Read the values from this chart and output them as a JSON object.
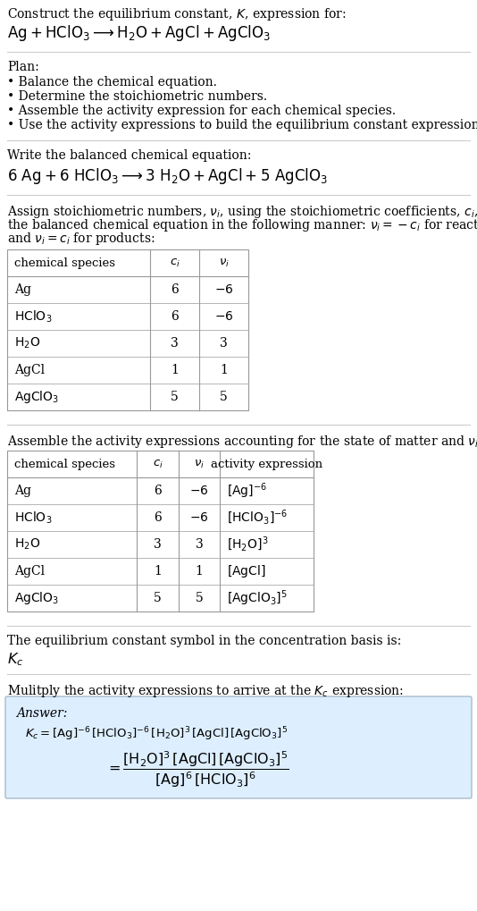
{
  "title_line1": "Construct the equilibrium constant, $K$, expression for:",
  "title_line2": "$\\mathrm{Ag + HClO_3 \\longrightarrow H_2O + AgCl + AgClO_3}$",
  "plan_header": "Plan:",
  "plan_items": [
    "• Balance the chemical equation.",
    "• Determine the stoichiometric numbers.",
    "• Assemble the activity expression for each chemical species.",
    "• Use the activity expressions to build the equilibrium constant expression."
  ],
  "balanced_header": "Write the balanced chemical equation:",
  "balanced_eq": "$\\mathrm{6\\ Ag + 6\\ HClO_3 \\longrightarrow 3\\ H_2O + AgCl + 5\\ AgClO_3}$",
  "stoich_lines": [
    "Assign stoichiometric numbers, $\\nu_i$, using the stoichiometric coefficients, $c_i$, from",
    "the balanced chemical equation in the following manner: $\\nu_i = -c_i$ for reactants",
    "and $\\nu_i = c_i$ for products:"
  ],
  "table1_headers": [
    "chemical species",
    "$c_i$",
    "$\\nu_i$"
  ],
  "table1_rows": [
    [
      "Ag",
      "6",
      "$-6$"
    ],
    [
      "$\\mathrm{HClO_3}$",
      "6",
      "$-6$"
    ],
    [
      "$\\mathrm{H_2O}$",
      "3",
      "3"
    ],
    [
      "AgCl",
      "1",
      "1"
    ],
    [
      "$\\mathrm{AgClO_3}$",
      "5",
      "5"
    ]
  ],
  "activity_header": "Assemble the activity expressions accounting for the state of matter and $\\nu_i$:",
  "table2_headers": [
    "chemical species",
    "$c_i$",
    "$\\nu_i$",
    "activity expression"
  ],
  "table2_rows": [
    [
      "Ag",
      "6",
      "$-6$",
      "$[\\mathrm{Ag}]^{-6}$"
    ],
    [
      "$\\mathrm{HClO_3}$",
      "6",
      "$-6$",
      "$[\\mathrm{HClO_3}]^{-6}$"
    ],
    [
      "$\\mathrm{H_2O}$",
      "3",
      "3",
      "$[\\mathrm{H_2O}]^{3}$"
    ],
    [
      "AgCl",
      "1",
      "1",
      "$[\\mathrm{AgCl}]$"
    ],
    [
      "$\\mathrm{AgClO_3}$",
      "5",
      "5",
      "$[\\mathrm{AgClO_3}]^{5}$"
    ]
  ],
  "kc_header": "The equilibrium constant symbol in the concentration basis is:",
  "kc_symbol": "$K_c$",
  "multiply_header": "Mulitply the activity expressions to arrive at the $K_c$ expression:",
  "answer_label": "Answer:",
  "answer_eq_line1": "$K_c = [\\mathrm{Ag}]^{-6}\\,[\\mathrm{HClO_3}]^{-6}\\,[\\mathrm{H_2O}]^{3}\\,[\\mathrm{AgCl}]\\,[\\mathrm{AgClO_3}]^{5}$",
  "answer_eq_line2": "$= \\dfrac{[\\mathrm{H_2O}]^{3}\\,[\\mathrm{AgCl}]\\,[\\mathrm{AgClO_3}]^{5}}{[\\mathrm{Ag}]^{6}\\,[\\mathrm{HClO_3}]^{6}}$",
  "bg_color": "#ffffff",
  "text_color": "#000000",
  "table_border_color": "#999999",
  "answer_box_color": "#ddeeff",
  "answer_box_border": "#aabbcc",
  "rule_color": "#cccccc",
  "font_size": 10.5,
  "small_font_size": 10.0
}
